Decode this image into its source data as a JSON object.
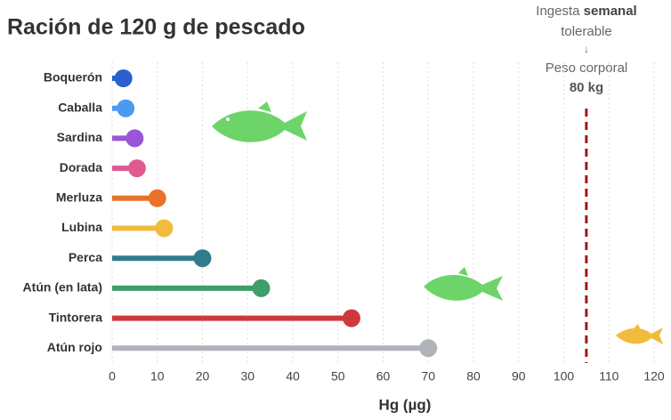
{
  "chart_data": {
    "type": "lollipop",
    "title": "Ración de 120 g de pescado",
    "x_label": "Hg (µg)",
    "categories": [
      "Boquerón",
      "Caballa",
      "Sardina",
      "Dorada",
      "Merluza",
      "Lubina",
      "Perca",
      "Atún (en lata)",
      "Tintorera",
      "Atún rojo"
    ],
    "values": [
      2.5,
      3,
      5,
      5.5,
      10,
      11.5,
      20,
      33,
      53,
      70
    ],
    "colors": [
      "#2a5fcf",
      "#4a9bef",
      "#9a55d8",
      "#e05a92",
      "#e8722a",
      "#f0bc3c",
      "#2f7d8c",
      "#3e9e6a",
      "#d0393c",
      "#b0b3b8"
    ],
    "xlim": [
      0,
      120
    ],
    "xticks": [
      0,
      10,
      20,
      30,
      40,
      50,
      60,
      70,
      80,
      90,
      100,
      110,
      120
    ],
    "grid": true,
    "reference_line": {
      "value": 105,
      "color": "#a01818"
    },
    "annotation": {
      "line1_start": "Ingesta",
      "line1_bold": "semanal",
      "line2": "tolerable",
      "arrow": "↓",
      "line3": "Peso corporal",
      "line4": "80 kg"
    }
  }
}
